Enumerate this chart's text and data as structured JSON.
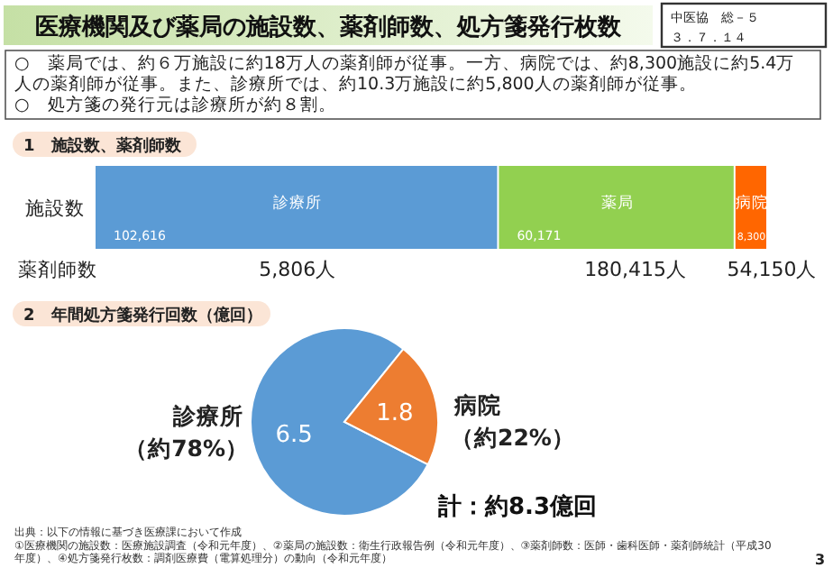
{
  "chart_data": [
    {
      "type": "bar",
      "title": "医療機関及び薬局の施設数、薬剤師数、処方箋発行枚数",
      "subtitle": "1　施設数、薬剤師数",
      "orientation": "horizontal",
      "stacked": true,
      "categories": [
        "施設数"
      ],
      "tick_labels": "y",
      "series": [
        {
          "name": "診療所",
          "color": "#5b9bd5",
          "values": [
            102616
          ],
          "value_labels": [
            "102,616"
          ]
        },
        {
          "name": "薬局",
          "color": "#92d050",
          "values": [
            60171
          ],
          "value_labels": [
            "60,171"
          ]
        },
        {
          "name": "病院",
          "color": "#ff6600",
          "values": [
            8300
          ],
          "value_labels": [
            "8,300"
          ]
        }
      ],
      "annotations": [
        "中医協　総－５",
        "３．７．１４",
        "○　薬局では、約６万施設に約18万人の薬剤師が従事。一方、病院では、約8,300施設に約5.4万人の薬剤師が従事。また、診療所では、約10.3万施設に約5,800人の薬剤師が従事。",
        "○　処方箋の発行元は診療所が約８割。",
        "薬剤師数",
        "5,806人",
        "180,415人",
        "54,150人"
      ]
    },
    {
      "type": "pie",
      "title": "2　年間処方箋発行回数（億回）",
      "categories": [
        "診療所",
        "病院"
      ],
      "values": [
        6.5,
        1.8
      ],
      "colors": [
        "#5b9bd5",
        "#ed7d31"
      ],
      "data_labels": true,
      "annotations": [
        "（約78%）",
        "（約22%）",
        "計：約8.3億回",
        "出典：以下の情報に基づき医療課において作成",
        "①医療機関の施設数：医療施設調査（令和元年度）、②薬局の施設数：衛生行政報告例（令和元年度）、③薬剤師数：医師・歯科医師・薬剤師統計（平成30年度）、④処方箋発行枚数：調剤医療費（電算処理分）の動向（令和元年度）",
        "3"
      ]
    }
  ]
}
